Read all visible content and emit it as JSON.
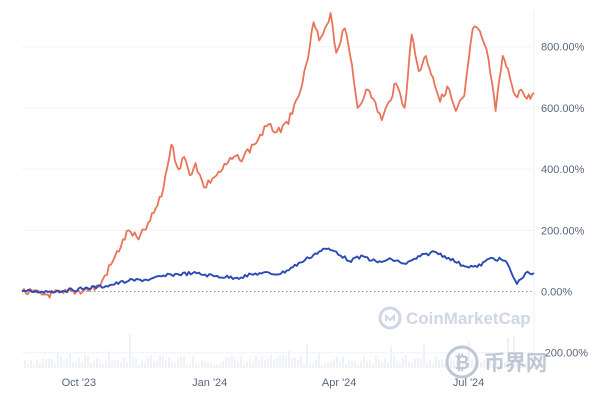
{
  "chart_data": {
    "type": "line",
    "title": "",
    "xlabel": "",
    "ylabel": "",
    "y_unit": "%",
    "ylim": [
      -250,
      920
    ],
    "y_ticks": [
      800,
      600,
      400,
      200,
      0,
      -200
    ],
    "y_tick_labels": [
      "800.00%",
      "600.00%",
      "400.00%",
      "200.00%",
      "0.00%",
      "-200.00%"
    ],
    "x_tick_labels": [
      "Oct '23",
      "Jan '24",
      "Apr '24",
      "Jul '24"
    ],
    "x_tick_dates": [
      "2023-10-01",
      "2024-01-01",
      "2024-04-01",
      "2024-07-01"
    ],
    "xlim": [
      "2023-08-22",
      "2024-08-16"
    ],
    "grid": true,
    "legend": "none",
    "baseline": {
      "value": 0,
      "style": "dotted"
    },
    "series": [
      {
        "color": "#e9745a",
        "x": [
          "2023-08-22",
          "2023-09-05",
          "2023-09-20",
          "2023-10-05",
          "2023-10-15",
          "2023-10-25",
          "2023-11-05",
          "2023-11-12",
          "2023-11-20",
          "2023-11-28",
          "2023-12-05",
          "2023-12-10",
          "2023-12-14",
          "2023-12-18",
          "2023-12-22",
          "2023-12-28",
          "2024-01-03",
          "2024-01-10",
          "2024-01-18",
          "2024-01-22",
          "2024-02-01",
          "2024-02-10",
          "2024-02-20",
          "2024-02-28",
          "2024-03-05",
          "2024-03-10",
          "2024-03-14",
          "2024-03-18",
          "2024-03-22",
          "2024-03-26",
          "2024-03-30",
          "2024-04-05",
          "2024-04-10",
          "2024-04-14",
          "2024-04-20",
          "2024-04-25",
          "2024-05-01",
          "2024-05-06",
          "2024-05-11",
          "2024-05-17",
          "2024-05-22",
          "2024-05-27",
          "2024-06-01",
          "2024-06-06",
          "2024-06-11",
          "2024-06-16",
          "2024-06-22",
          "2024-06-28",
          "2024-07-04",
          "2024-07-09",
          "2024-07-15",
          "2024-07-20",
          "2024-07-25",
          "2024-07-30",
          "2024-08-03",
          "2024-08-07",
          "2024-08-11",
          "2024-08-16"
        ],
        "y": [
          0,
          -10,
          -5,
          5,
          15,
          100,
          200,
          170,
          230,
          310,
          480,
          400,
          440,
          380,
          420,
          340,
          370,
          400,
          440,
          430,
          480,
          540,
          520,
          580,
          660,
          760,
          880,
          820,
          860,
          910,
          780,
          860,
          740,
          600,
          660,
          630,
          560,
          620,
          680,
          600,
          840,
          720,
          770,
          700,
          620,
          670,
          590,
          640,
          860,
          850,
          760,
          590,
          770,
          700,
          640,
          660,
          630,
          650
        ]
      },
      {
        "color": "#2b4bb3",
        "x": [
          "2023-08-22",
          "2023-09-05",
          "2023-09-20",
          "2023-10-05",
          "2023-10-20",
          "2023-11-05",
          "2023-11-20",
          "2023-12-05",
          "2023-12-20",
          "2024-01-05",
          "2024-01-20",
          "2024-02-05",
          "2024-02-20",
          "2024-03-05",
          "2024-03-14",
          "2024-03-22",
          "2024-03-30",
          "2024-04-08",
          "2024-04-18",
          "2024-04-28",
          "2024-05-08",
          "2024-05-18",
          "2024-05-28",
          "2024-06-07",
          "2024-06-17",
          "2024-06-27",
          "2024-07-07",
          "2024-07-17",
          "2024-07-27",
          "2024-08-04",
          "2024-08-10",
          "2024-08-16"
        ],
        "y": [
          0,
          0,
          2,
          10,
          18,
          35,
          40,
          55,
          60,
          50,
          45,
          60,
          58,
          95,
          120,
          140,
          130,
          100,
          115,
          95,
          105,
          90,
          115,
          130,
          110,
          85,
          80,
          110,
          100,
          25,
          60,
          60
        ]
      }
    ]
  },
  "watermarks": {
    "coinmarketcap": "CoinMarketCap",
    "site_logo": "币界网",
    "site_logo_icon": "bitcoin-circle-icon",
    "cmc_icon": "coinmarketcap-logo-icon"
  }
}
